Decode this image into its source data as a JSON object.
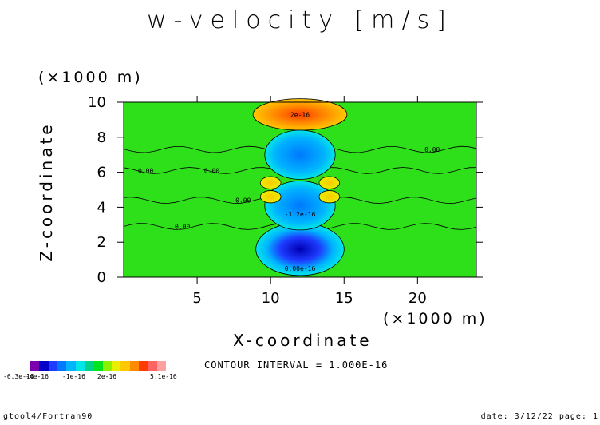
{
  "title": "w-velocity [m/s]",
  "y_scale_label": "(×1000 m)",
  "x_scale_label": "(×1000 m)",
  "contour_interval": "CONTOUR INTERVAL = 1.000E-16",
  "footer": {
    "left": "gtool4/Fortran90",
    "right": "date: 3/12/22 page: 1"
  },
  "colorbar": {
    "colors": [
      "#7a00b0",
      "#0000c8",
      "#1e3cff",
      "#0078ff",
      "#00b4ff",
      "#00e6e6",
      "#00d28c",
      "#00e61e",
      "#8cf000",
      "#e6f000",
      "#ffc800",
      "#ff8c00",
      "#ff3c00",
      "#ff6464",
      "#ffa0a0"
    ],
    "labels": [
      "-6.3e-16",
      "-4e-16",
      "-1e-16",
      "2e-16",
      "5.1e-16"
    ]
  },
  "chart_data": {
    "type": "heatmap",
    "title": "w-velocity [m/s]",
    "xlabel": "X-coordinate",
    "ylabel": "Z-coordinate",
    "xlim": [
      0,
      24
    ],
    "ylim": [
      0,
      10
    ],
    "xticks": [
      5,
      10,
      15,
      20
    ],
    "yticks": [
      0,
      2,
      4,
      6,
      8,
      10
    ],
    "background_value": 0,
    "contour_labels": [
      "0.00",
      "2e-16",
      "-1.2e-16",
      "-0.00",
      "0.00e-16"
    ],
    "features": [
      {
        "kind": "max",
        "x": 12,
        "z": 9.3,
        "value": 5.1e-16
      },
      {
        "kind": "min",
        "x": 12,
        "z": 1.6,
        "value": -6.3e-16
      },
      {
        "kind": "neg",
        "x": 12,
        "z": 7.0,
        "value": -3e-16
      },
      {
        "kind": "neg",
        "x": 12,
        "z": 4.1,
        "value": -2e-16
      },
      {
        "kind": "pos",
        "x": 10,
        "z": 5.4,
        "value": 2e-16
      },
      {
        "kind": "pos",
        "x": 14,
        "z": 5.4,
        "value": 2e-16
      },
      {
        "kind": "pos",
        "x": 10,
        "z": 4.6,
        "value": 2e-16
      },
      {
        "kind": "pos",
        "x": 14,
        "z": 4.6,
        "value": 2e-16
      }
    ]
  }
}
